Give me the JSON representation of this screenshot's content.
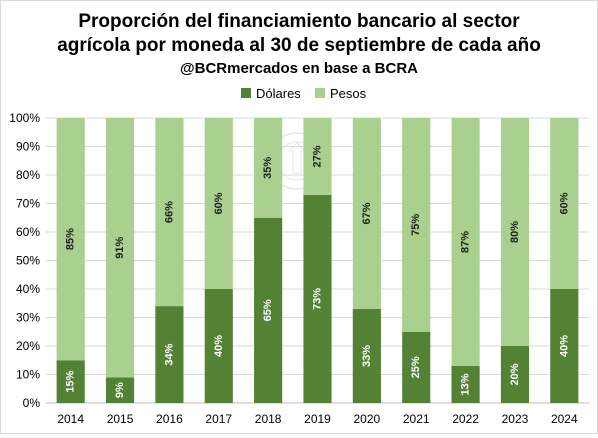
{
  "chart_data": {
    "type": "bar",
    "stacked": true,
    "title": "Proporción del financiamiento bancario al sector agrícola por moneda al 30 de septiembre de cada año",
    "title_lines": [
      "Proporción del financiamiento bancario al sector",
      "agrícola por moneda al 30 de septiembre de cada año"
    ],
    "subtitle": "@BCRmercados en base a BCRA",
    "categories": [
      "2014",
      "2015",
      "2016",
      "2017",
      "2018",
      "2019",
      "2020",
      "2021",
      "2022",
      "2023",
      "2024"
    ],
    "series": [
      {
        "name": "Dólares",
        "color": "#548235",
        "values": [
          15,
          9,
          34,
          40,
          65,
          73,
          33,
          25,
          13,
          20,
          40
        ],
        "labels": [
          "15%",
          "9%",
          "34%",
          "40%",
          "65%",
          "73%",
          "33%",
          "25%",
          "13%",
          "20%",
          "40%"
        ]
      },
      {
        "name": "Pesos",
        "color": "#a9d08e",
        "values": [
          85,
          91,
          66,
          60,
          35,
          27,
          67,
          75,
          87,
          80,
          60
        ],
        "labels": [
          "85%",
          "91%",
          "66%",
          "60%",
          "35%",
          "27%",
          "67%",
          "75%",
          "87%",
          "80%",
          "60%"
        ]
      }
    ],
    "y_ticks": [
      "0%",
      "10%",
      "20%",
      "30%",
      "40%",
      "50%",
      "60%",
      "70%",
      "80%",
      "90%",
      "100%"
    ],
    "ylim": [
      0,
      100
    ],
    "grid": true,
    "legend_position": "top"
  }
}
